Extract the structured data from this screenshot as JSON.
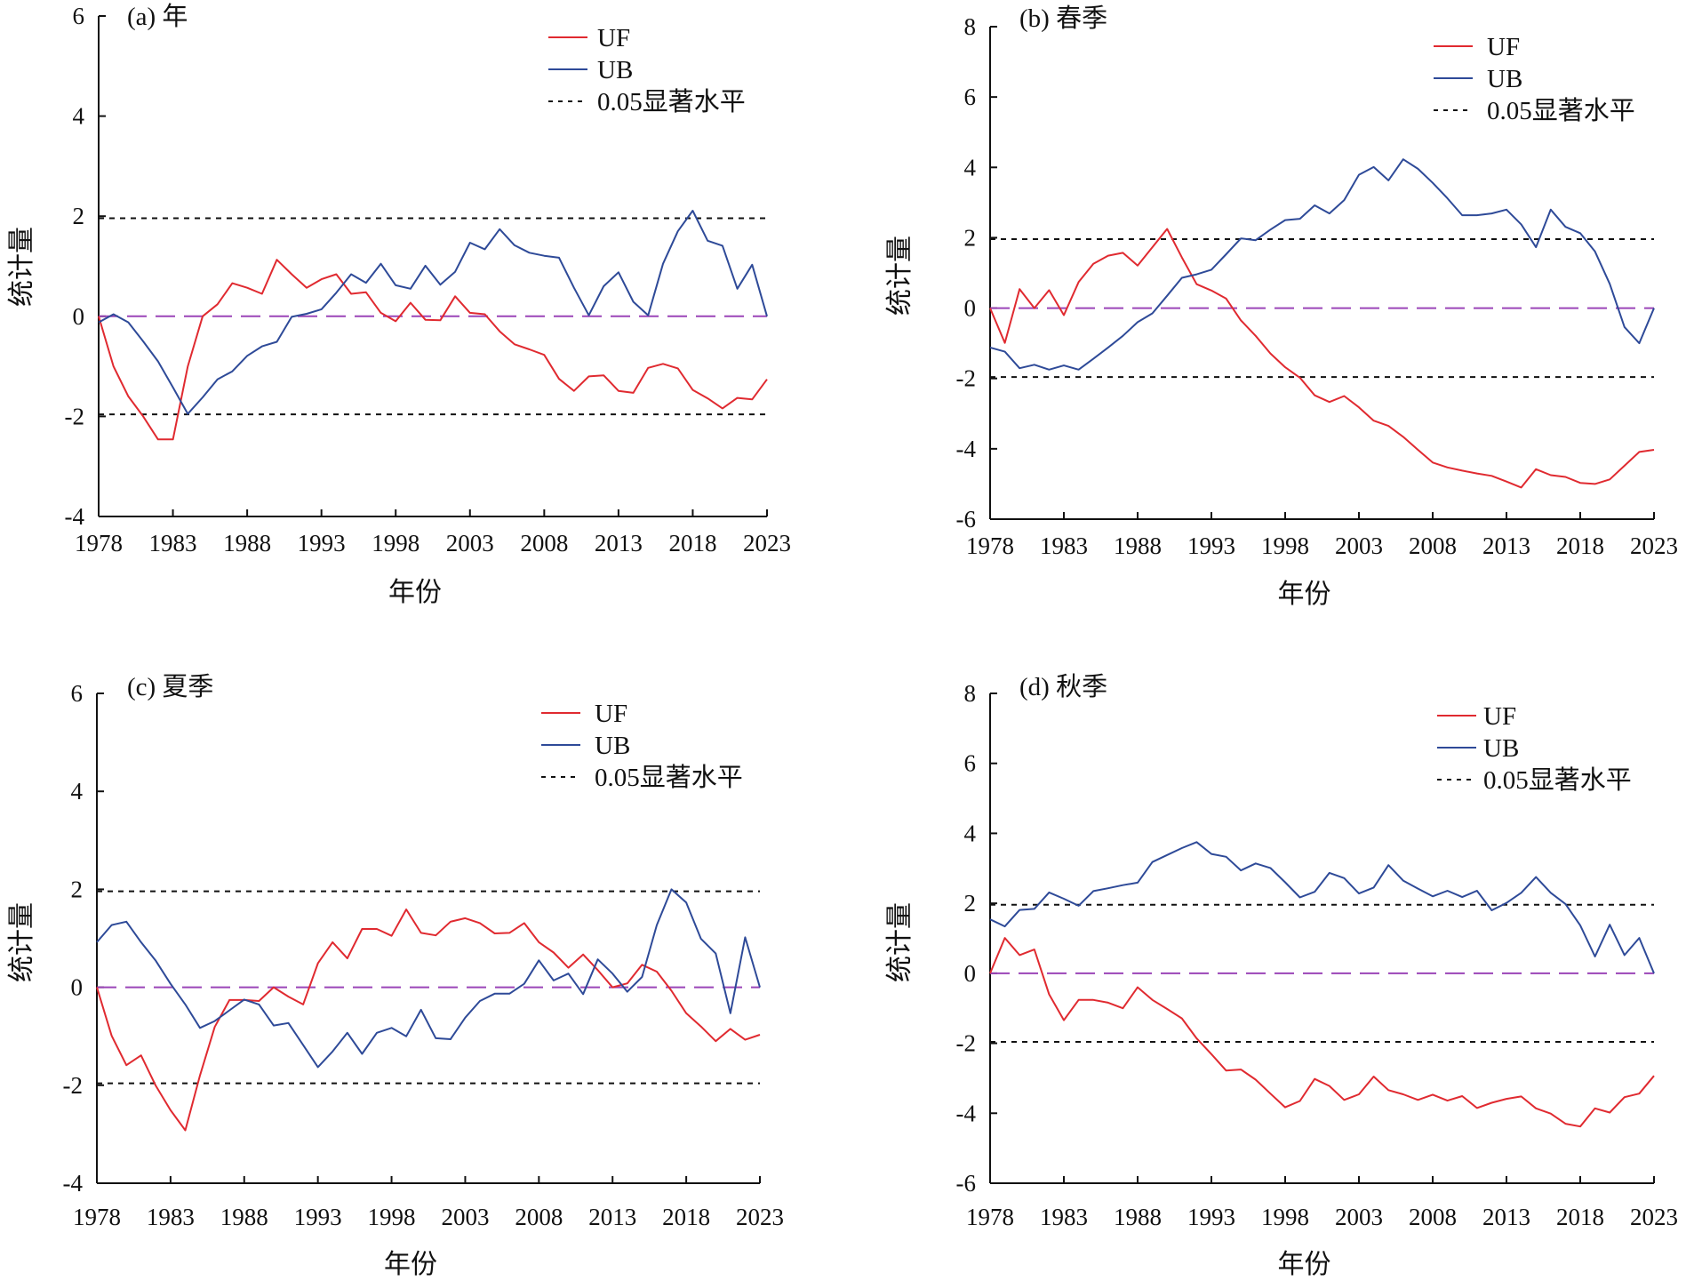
{
  "chart_data": [
    {
      "type": "line",
      "title": "(a) 年",
      "xlabel": "年份",
      "ylabel": "统计量",
      "xlim": [
        1978,
        2023
      ],
      "ylim": [
        -4,
        6
      ],
      "xticks": [
        1978,
        1983,
        1988,
        1993,
        1998,
        2003,
        2008,
        2013,
        2018,
        2023
      ],
      "yticks": [
        -4,
        -2,
        0,
        2,
        4,
        6
      ],
      "significance": 1.96,
      "legend": {
        "position": "top-right",
        "uf": "UF",
        "ub": "UB",
        "sig": "0.05显著水平"
      },
      "x": [
        1978,
        1979,
        1980,
        1981,
        1982,
        1983,
        1984,
        1985,
        1986,
        1987,
        1988,
        1989,
        1990,
        1991,
        1992,
        1993,
        1994,
        1995,
        1996,
        1997,
        1998,
        1999,
        2000,
        2001,
        2002,
        2003,
        2004,
        2005,
        2006,
        2007,
        2008,
        2009,
        2010,
        2011,
        2012,
        2013,
        2014,
        2015,
        2016,
        2017,
        2018,
        2019,
        2020,
        2021,
        2022,
        2023
      ],
      "series": [
        {
          "name": "UF",
          "color": "#e02a30",
          "values": [
            0,
            -1.0,
            -1.6,
            -2.0,
            -2.46,
            -2.46,
            -1.0,
            0,
            0.24,
            0.66,
            0.57,
            0.45,
            1.13,
            0.84,
            0.57,
            0.74,
            0.84,
            0.45,
            0.48,
            0.07,
            -0.1,
            0.27,
            -0.07,
            -0.08,
            0.4,
            0.07,
            0.04,
            -0.3,
            -0.56,
            -0.66,
            -0.77,
            -1.25,
            -1.49,
            -1.2,
            -1.18,
            -1.49,
            -1.53,
            -1.03,
            -0.95,
            -1.04,
            -1.47,
            -1.64,
            -1.84,
            -1.63,
            -1.66,
            -1.26
          ]
        },
        {
          "name": "UB",
          "color": "#2e4a98",
          "values": [
            -0.12,
            0.04,
            -0.12,
            -0.5,
            -0.9,
            -1.42,
            -1.95,
            -1.62,
            -1.26,
            -1.1,
            -0.79,
            -0.6,
            -0.51,
            -0.01,
            0.05,
            0.14,
            0.47,
            0.84,
            0.67,
            1.05,
            0.62,
            0.55,
            1.01,
            0.63,
            0.89,
            1.47,
            1.34,
            1.74,
            1.42,
            1.27,
            1.21,
            1.17,
            0.57,
            0.02,
            0.6,
            0.88,
            0.29,
            0.02,
            1.05,
            1.7,
            2.11,
            1.51,
            1.41,
            0.55,
            1.03,
            0
          ]
        }
      ]
    },
    {
      "type": "line",
      "title": "(b) 春季",
      "xlabel": "年份",
      "ylabel": "统计量",
      "xlim": [
        1978,
        2023
      ],
      "ylim": [
        -6,
        8
      ],
      "xticks": [
        1978,
        1983,
        1988,
        1993,
        1998,
        2003,
        2008,
        2013,
        2018,
        2023
      ],
      "yticks": [
        -6,
        -4,
        -2,
        0,
        2,
        4,
        6,
        8
      ],
      "significance": 1.96,
      "legend": {
        "position": "top-right",
        "uf": "UF",
        "ub": "UB",
        "sig": "0.05显著水平"
      },
      "x": [
        1978,
        1979,
        1980,
        1981,
        1982,
        1983,
        1984,
        1985,
        1986,
        1987,
        1988,
        1989,
        1990,
        1991,
        1992,
        1993,
        1994,
        1995,
        1996,
        1997,
        1998,
        1999,
        2000,
        2001,
        2002,
        2003,
        2004,
        2005,
        2006,
        2007,
        2008,
        2009,
        2010,
        2011,
        2012,
        2013,
        2014,
        2015,
        2016,
        2017,
        2018,
        2019,
        2020,
        2021,
        2022,
        2023
      ],
      "series": [
        {
          "name": "UF",
          "color": "#e02a30",
          "values": [
            0,
            -0.99,
            0.54,
            0,
            0.51,
            -0.2,
            0.74,
            1.26,
            1.49,
            1.57,
            1.21,
            1.73,
            2.25,
            1.44,
            0.68,
            0.5,
            0.27,
            -0.35,
            -0.79,
            -1.29,
            -1.68,
            -1.98,
            -2.48,
            -2.67,
            -2.5,
            -2.82,
            -3.2,
            -3.35,
            -3.66,
            -4.03,
            -4.39,
            -4.53,
            -4.62,
            -4.7,
            -4.77,
            -4.93,
            -5.1,
            -4.58,
            -4.75,
            -4.8,
            -4.97,
            -5.0,
            -4.87,
            -4.48,
            -4.09,
            -4.03
          ]
        },
        {
          "name": "UB",
          "color": "#2e4a98",
          "values": [
            -1.12,
            -1.24,
            -1.71,
            -1.61,
            -1.75,
            -1.63,
            -1.75,
            -1.44,
            -1.12,
            -0.79,
            -0.4,
            -0.15,
            0.35,
            0.86,
            0.96,
            1.09,
            1.53,
            1.98,
            1.93,
            2.23,
            2.5,
            2.54,
            2.92,
            2.69,
            3.07,
            3.79,
            4.01,
            3.63,
            4.23,
            3.96,
            3.56,
            3.12,
            2.64,
            2.64,
            2.69,
            2.8,
            2.38,
            1.73,
            2.8,
            2.31,
            2.13,
            1.61,
            0.69,
            -0.54,
            -1.0,
            0
          ]
        }
      ]
    },
    {
      "type": "line",
      "title": "(c) 夏季",
      "xlabel": "年份",
      "ylabel": "统计量",
      "xlim": [
        1978,
        2023
      ],
      "ylim": [
        -4,
        6
      ],
      "xticks": [
        1978,
        1983,
        1988,
        1993,
        1998,
        2003,
        2008,
        2013,
        2018,
        2023
      ],
      "yticks": [
        -4,
        -2,
        0,
        2,
        4,
        6
      ],
      "significance": 1.96,
      "legend": {
        "position": "top-right",
        "uf": "UF",
        "ub": "UB",
        "sig": "0.05显著水平"
      },
      "x": [
        1978,
        1979,
        1980,
        1981,
        1982,
        1983,
        1984,
        1985,
        1986,
        1987,
        1988,
        1989,
        1990,
        1991,
        1992,
        1993,
        1994,
        1995,
        1996,
        1997,
        1998,
        1999,
        2000,
        2001,
        2002,
        2003,
        2004,
        2005,
        2006,
        2007,
        2008,
        2009,
        2010,
        2011,
        2012,
        2013,
        2014,
        2015,
        2016,
        2017,
        2018,
        2019,
        2020,
        2021,
        2022,
        2023
      ],
      "series": [
        {
          "name": "UF",
          "color": "#e02a30",
          "values": [
            0,
            -0.99,
            -1.59,
            -1.39,
            -2.01,
            -2.51,
            -2.92,
            -1.8,
            -0.81,
            -0.26,
            -0.26,
            -0.28,
            0,
            -0.19,
            -0.35,
            0.49,
            0.92,
            0.59,
            1.19,
            1.19,
            1.05,
            1.59,
            1.11,
            1.06,
            1.34,
            1.41,
            1.31,
            1.1,
            1.11,
            1.31,
            0.92,
            0.71,
            0.4,
            0.67,
            0.35,
            0,
            0.08,
            0.46,
            0.32,
            -0.07,
            -0.53,
            -0.8,
            -1.1,
            -0.85,
            -1.07,
            -0.97
          ]
        },
        {
          "name": "UB",
          "color": "#2e4a98",
          "values": [
            0.92,
            1.27,
            1.34,
            0.92,
            0.54,
            0.07,
            -0.35,
            -0.83,
            -0.69,
            -0.47,
            -0.25,
            -0.35,
            -0.78,
            -0.73,
            -1.18,
            -1.63,
            -1.31,
            -0.93,
            -1.36,
            -0.93,
            -0.83,
            -1.0,
            -0.46,
            -1.04,
            -1.06,
            -0.62,
            -0.28,
            -0.13,
            -0.13,
            0.07,
            0.55,
            0.14,
            0.28,
            -0.14,
            0.57,
            0.28,
            -0.09,
            0.21,
            1.27,
            2.0,
            1.73,
            0.99,
            0.69,
            -0.53,
            1.02,
            0
          ]
        }
      ]
    },
    {
      "type": "line",
      "title": "(d) 秋季",
      "xlabel": "年份",
      "ylabel": "统计量",
      "xlim": [
        1978,
        2023
      ],
      "ylim": [
        -6,
        8
      ],
      "xticks": [
        1978,
        1983,
        1988,
        1993,
        1998,
        2003,
        2008,
        2013,
        2018,
        2023
      ],
      "yticks": [
        -6,
        -4,
        -2,
        0,
        2,
        4,
        6,
        8
      ],
      "significance": 1.96,
      "legend": {
        "position": "top-right",
        "uf": "UF",
        "ub": "UB",
        "sig": "0.05显著水平"
      },
      "x": [
        1978,
        1979,
        1980,
        1981,
        1982,
        1983,
        1984,
        1985,
        1986,
        1987,
        1988,
        1989,
        1990,
        1991,
        1992,
        1993,
        1994,
        1995,
        1996,
        1997,
        1998,
        1999,
        2000,
        2001,
        2002,
        2003,
        2004,
        2005,
        2006,
        2007,
        2008,
        2009,
        2010,
        2011,
        2012,
        2013,
        2014,
        2015,
        2016,
        2017,
        2018,
        2019,
        2020,
        2021,
        2022,
        2023
      ],
      "series": [
        {
          "name": "UF",
          "color": "#e02a30",
          "values": [
            0,
            1.01,
            0.52,
            0.68,
            -0.6,
            -1.34,
            -0.76,
            -0.76,
            -0.84,
            -1.0,
            -0.4,
            -0.76,
            -1.02,
            -1.29,
            -1.86,
            -2.31,
            -2.78,
            -2.75,
            -3.04,
            -3.44,
            -3.83,
            -3.65,
            -3.02,
            -3.22,
            -3.62,
            -3.46,
            -2.95,
            -3.34,
            -3.46,
            -3.62,
            -3.47,
            -3.64,
            -3.51,
            -3.85,
            -3.7,
            -3.59,
            -3.52,
            -3.86,
            -4.01,
            -4.3,
            -4.38,
            -3.86,
            -3.98,
            -3.54,
            -3.44,
            -2.93
          ]
        },
        {
          "name": "UB",
          "color": "#2e4a98",
          "values": [
            1.54,
            1.34,
            1.81,
            1.84,
            2.31,
            2.13,
            1.93,
            2.35,
            2.43,
            2.52,
            2.59,
            3.18,
            3.38,
            3.58,
            3.75,
            3.41,
            3.33,
            2.94,
            3.14,
            3.01,
            2.6,
            2.17,
            2.33,
            2.87,
            2.72,
            2.28,
            2.45,
            3.09,
            2.65,
            2.42,
            2.2,
            2.36,
            2.18,
            2.36,
            1.8,
            2.01,
            2.3,
            2.75,
            2.3,
            1.98,
            1.37,
            0.48,
            1.39,
            0.52,
            1.01,
            0
          ]
        }
      ]
    }
  ],
  "colors": {
    "zero_line": "#9b45b8",
    "significance_line": "#111111",
    "axis": "#111111"
  }
}
